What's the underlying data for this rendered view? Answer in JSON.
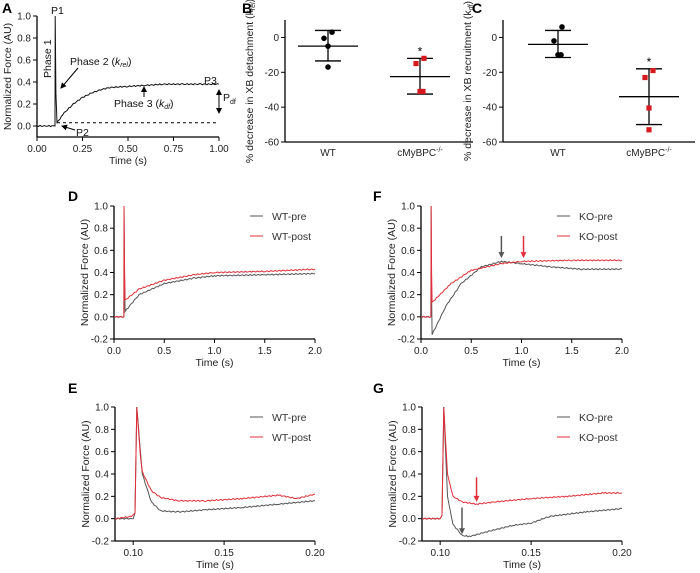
{
  "panels": {
    "A": {
      "letter": "A"
    },
    "B": {
      "letter": "B"
    },
    "C": {
      "letter": "C"
    },
    "D": {
      "letter": "D"
    },
    "E": {
      "letter": "E"
    },
    "F": {
      "letter": "F"
    },
    "G": {
      "letter": "G"
    }
  },
  "annotations_a": {
    "p1": "P1",
    "p2": "P2",
    "p3": "P3",
    "phase1": "Phase 1",
    "phase2": "Phase 2 (",
    "phase2_k": "k",
    "phase2_sub": "rel",
    "phase2_end": ")",
    "phase3": "Phase 3 (",
    "phase3_k": "k",
    "phase3_sub": "df",
    "phase3_end": ")",
    "pdf": "P",
    "pdf_sub": "df"
  },
  "colors": {
    "pre": "#555555",
    "post": "#e0303a",
    "trace": "#111111",
    "ko_points": "#d71920",
    "wt_points": "#000000"
  },
  "chart_data": [
    {
      "id": "A",
      "type": "line",
      "xlabel": "Time (s)",
      "ylabel": "Normalized Force (AU)",
      "xlim": [
        0,
        1
      ],
      "ylim": [
        -0.1,
        1.0
      ],
      "xticks": [
        "0.00",
        "0.25",
        "0.50",
        "0.75",
        "1.00"
      ],
      "yticks": [
        "0.0",
        "0.2",
        "0.4",
        "0.6",
        "0.8",
        "1.0"
      ],
      "baseline_dashed": {
        "y": 0.03,
        "x": [
          0.11,
          1.0
        ]
      },
      "series": [
        {
          "color": "trace",
          "x": [
            0,
            0.05,
            0.099,
            0.1,
            0.104,
            0.11,
            0.15,
            0.2,
            0.25,
            0.3,
            0.35,
            0.4,
            0.5,
            0.6,
            0.7,
            0.8,
            0.9,
            1.0
          ],
          "y": [
            0,
            0,
            0,
            1.0,
            0.3,
            0.03,
            0.12,
            0.2,
            0.26,
            0.3,
            0.33,
            0.35,
            0.36,
            0.37,
            0.38,
            0.38,
            0.38,
            0.38
          ]
        }
      ]
    },
    {
      "id": "B",
      "type": "scatter",
      "ylabel": "% decrease in XB detachment (k",
      "ylabel_sub": "rel",
      "ylabel_end": ")",
      "ylim": [
        -60,
        10
      ],
      "yticks": [
        "0",
        "-20",
        "-40",
        "-60"
      ],
      "categories": [
        {
          "label": "WT",
          "sup": ""
        },
        {
          "label": "cMyBPC",
          "sup": "-/-"
        }
      ],
      "groups": [
        {
          "values": [
            3,
            -0.5,
            -5,
            -17
          ],
          "mean": -5,
          "upper": 4,
          "lower": -13.5,
          "marker": "circle",
          "color": "wt_points",
          "significance": ""
        },
        {
          "values": [
            -12,
            -15,
            -31,
            -31
          ],
          "mean": -22.5,
          "upper": -12,
          "lower": -32.5,
          "marker": "square",
          "color": "ko_points",
          "significance": "*"
        }
      ]
    },
    {
      "id": "C",
      "type": "scatter",
      "ylabel": "% decrease in XB recruitment (k",
      "ylabel_sub": "df",
      "ylabel_end": ")",
      "ylim": [
        -60,
        10
      ],
      "yticks": [
        "0",
        "-20",
        "-40",
        "-60"
      ],
      "categories": [
        {
          "label": "WT",
          "sup": ""
        },
        {
          "label": "cMyBPC",
          "sup": "-/-"
        }
      ],
      "groups": [
        {
          "values": [
            6,
            -2,
            -10,
            -10
          ],
          "mean": -4,
          "upper": 4,
          "lower": -11.5,
          "marker": "circle",
          "color": "wt_points",
          "significance": ""
        },
        {
          "values": [
            -19,
            -23,
            -40.5,
            -53
          ],
          "mean": -34,
          "upper": -18,
          "lower": -50,
          "marker": "square",
          "color": "ko_points",
          "significance": "*"
        }
      ]
    },
    {
      "id": "D",
      "type": "line",
      "xlabel": "Time (s)",
      "ylabel": "Normalized Force (AU)",
      "xlim": [
        0,
        2
      ],
      "ylim": [
        -0.2,
        1.0
      ],
      "xticks": [
        "0.0",
        "0.5",
        "1.0",
        "1.5",
        "2.0"
      ],
      "yticks": [
        "-0.2",
        "0.0",
        "0.2",
        "0.4",
        "0.6",
        "0.8",
        "1.0"
      ],
      "legend": "top-right",
      "series": [
        {
          "name": "WT-pre",
          "color": "pre",
          "x": [
            0,
            0.099,
            0.1,
            0.105,
            0.11,
            0.25,
            0.5,
            0.8,
            1.0,
            1.5,
            2.0
          ],
          "y": [
            0,
            0,
            1.0,
            0.3,
            0.05,
            0.2,
            0.3,
            0.35,
            0.37,
            0.38,
            0.39
          ]
        },
        {
          "name": "WT-post",
          "color": "post",
          "x": [
            0,
            0.099,
            0.1,
            0.105,
            0.11,
            0.25,
            0.5,
            0.8,
            1.0,
            1.5,
            2.0
          ],
          "y": [
            0,
            0,
            1.0,
            0.4,
            0.15,
            0.25,
            0.33,
            0.38,
            0.4,
            0.41,
            0.43
          ]
        }
      ]
    },
    {
      "id": "F",
      "type": "line",
      "xlabel": "Time (s)",
      "ylabel": "Normalized Force (AU)",
      "xlim": [
        0,
        2
      ],
      "ylim": [
        -0.2,
        1.0
      ],
      "xticks": [
        "0.0",
        "0.5",
        "1.0",
        "1.5",
        "2.0"
      ],
      "yticks": [
        "-0.2",
        "0.0",
        "0.2",
        "0.4",
        "0.6",
        "0.8",
        "1.0"
      ],
      "legend": "top-right",
      "series": [
        {
          "name": "KO-pre",
          "color": "pre",
          "x": [
            0,
            0.099,
            0.1,
            0.105,
            0.11,
            0.25,
            0.4,
            0.6,
            0.8,
            1.0,
            1.3,
            1.6,
            2.0
          ],
          "y": [
            0,
            0,
            1.0,
            0.2,
            -0.16,
            0.1,
            0.3,
            0.45,
            0.5,
            0.48,
            0.45,
            0.43,
            0.43
          ]
        },
        {
          "name": "KO-post",
          "color": "post",
          "x": [
            0,
            0.099,
            0.1,
            0.105,
            0.11,
            0.3,
            0.5,
            0.8,
            1.0,
            1.5,
            2.0
          ],
          "y": [
            0,
            0,
            1.0,
            0.4,
            0.13,
            0.3,
            0.42,
            0.48,
            0.5,
            0.51,
            0.51
          ]
        }
      ],
      "arrows": [
        {
          "color": "pre",
          "x": 0.8,
          "from": 0.73,
          "to": 0.53
        },
        {
          "color": "post",
          "x": 1.02,
          "from": 0.73,
          "to": 0.53
        }
      ]
    },
    {
      "id": "E",
      "type": "line",
      "xlabel": "Time (s)",
      "ylabel": "Normalized Force (AU)",
      "xlim": [
        0.09,
        0.2
      ],
      "ylim": [
        -0.2,
        1.0
      ],
      "xticks": [
        "0.10",
        "0.15",
        "0.20"
      ],
      "yticks": [
        "-0.2",
        "0.0",
        "0.2",
        "0.4",
        "0.6",
        "0.8",
        "1.0"
      ],
      "legend": "top-right",
      "series": [
        {
          "name": "WT-pre",
          "color": "pre",
          "x": [
            0.09,
            0.1,
            0.101,
            0.102,
            0.105,
            0.11,
            0.115,
            0.125,
            0.14,
            0.16,
            0.18,
            0.2
          ],
          "y": [
            0,
            0,
            0.05,
            1.0,
            0.4,
            0.15,
            0.07,
            0.06,
            0.08,
            0.1,
            0.13,
            0.16
          ]
        },
        {
          "name": "WT-post",
          "color": "post",
          "x": [
            0.09,
            0.099,
            0.101,
            0.102,
            0.104,
            0.105,
            0.11,
            0.115,
            0.125,
            0.14,
            0.16,
            0.18,
            0.19,
            0.2
          ],
          "y": [
            0,
            0.02,
            0.05,
            1.0,
            0.55,
            0.42,
            0.25,
            0.19,
            0.16,
            0.16,
            0.18,
            0.21,
            0.18,
            0.22
          ]
        }
      ]
    },
    {
      "id": "G",
      "type": "line",
      "xlabel": "Time (s)",
      "ylabel": "Normalized Force (AU)",
      "xlim": [
        0.09,
        0.2
      ],
      "ylim": [
        -0.2,
        1.0
      ],
      "xticks": [
        "0.10",
        "0.15",
        "0.20"
      ],
      "yticks": [
        "-0.2",
        "0.0",
        "0.2",
        "0.4",
        "0.6",
        "0.8",
        "1.0"
      ],
      "legend": "top-right",
      "series": [
        {
          "name": "KO-pre",
          "color": "pre",
          "x": [
            0.09,
            0.1,
            0.101,
            0.102,
            0.104,
            0.107,
            0.112,
            0.116,
            0.125,
            0.14,
            0.15,
            0.16,
            0.18,
            0.2
          ],
          "y": [
            0,
            0,
            0.03,
            1.0,
            0.2,
            -0.05,
            -0.15,
            -0.16,
            -0.12,
            -0.06,
            -0.04,
            0.02,
            0.06,
            0.09
          ]
        },
        {
          "name": "KO-post",
          "color": "post",
          "x": [
            0.09,
            0.1,
            0.101,
            0.102,
            0.104,
            0.107,
            0.112,
            0.12,
            0.13,
            0.15,
            0.17,
            0.19,
            0.2
          ],
          "y": [
            0,
            0,
            0.03,
            1.0,
            0.4,
            0.2,
            0.15,
            0.13,
            0.15,
            0.18,
            0.2,
            0.23,
            0.23
          ]
        }
      ],
      "arrows": [
        {
          "color": "pre",
          "x": 0.112,
          "from": 0.1,
          "to": -0.14
        },
        {
          "color": "post",
          "x": 0.12,
          "from": 0.37,
          "to": 0.15
        }
      ]
    }
  ]
}
